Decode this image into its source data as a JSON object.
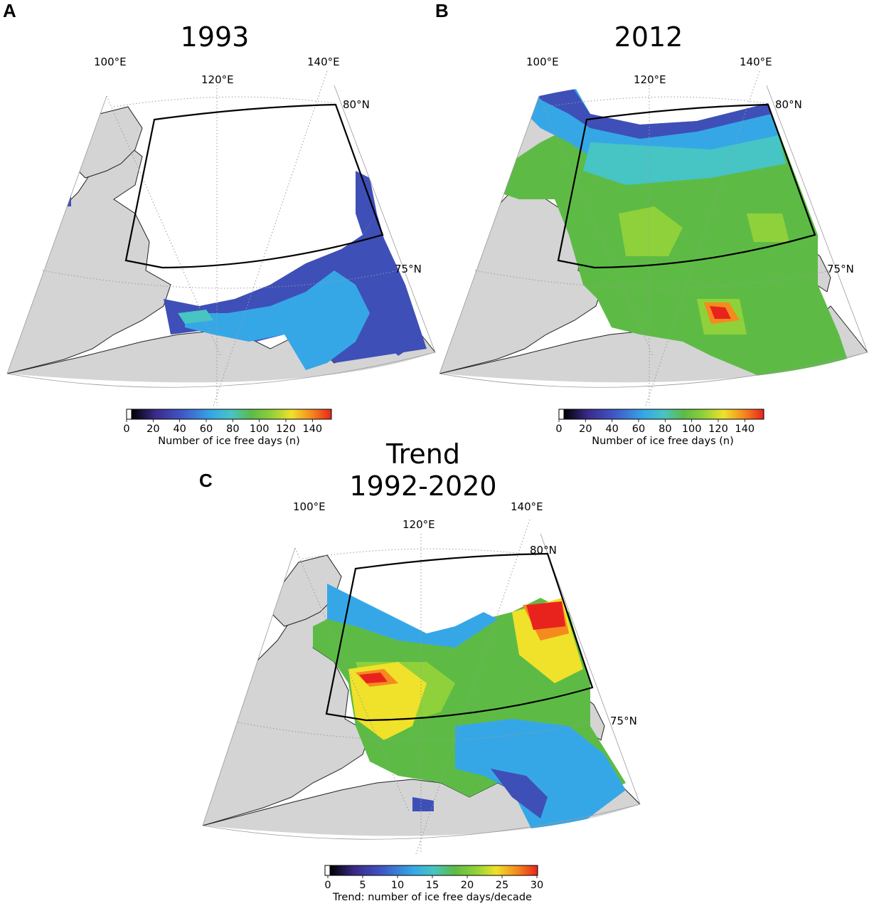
{
  "panels": [
    {
      "letter": "A",
      "title": "1993",
      "labels": {
        "lon100": "100°E",
        "lon120": "120°E",
        "lon140": "140°E",
        "lat80": "80°N",
        "lat75": "75°N"
      },
      "colorbar": {
        "ticks": [
          "0",
          "20",
          "40",
          "60",
          "80",
          "100",
          "120",
          "140"
        ],
        "label": "Number of ice free days (n)",
        "range": [
          0,
          150
        ]
      }
    },
    {
      "letter": "B",
      "title": "2012",
      "labels": {
        "lon100": "100°E",
        "lon120": "120°E",
        "lon140": "140°E",
        "lat80": "80°N",
        "lat75": "75°N"
      },
      "colorbar": {
        "ticks": [
          "0",
          "20",
          "40",
          "60",
          "80",
          "100",
          "120",
          "140"
        ],
        "label": "Number of ice free days (n)",
        "range": [
          0,
          150
        ]
      }
    },
    {
      "letter": "C",
      "title_line1": "Trend",
      "title_line2": "1992-2020",
      "labels": {
        "lon100": "100°E",
        "lon120": "120°E",
        "lon140": "140°E",
        "lat80": "80°N",
        "lat75": "75°N"
      },
      "colorbar": {
        "ticks": [
          "0",
          "5",
          "10",
          "15",
          "20",
          "25",
          "30"
        ],
        "label": "Trend: number of ice free days/decade",
        "range": [
          0,
          30
        ]
      }
    }
  ],
  "colors": {
    "land": "#d4d4d4",
    "colormap": [
      "#000000",
      "#3b2a8a",
      "#3f56c6",
      "#36a7e6",
      "#47c4c4",
      "#5dbb45",
      "#8fd13a",
      "#f0e12a",
      "#f58a1e",
      "#e8231e"
    ]
  }
}
